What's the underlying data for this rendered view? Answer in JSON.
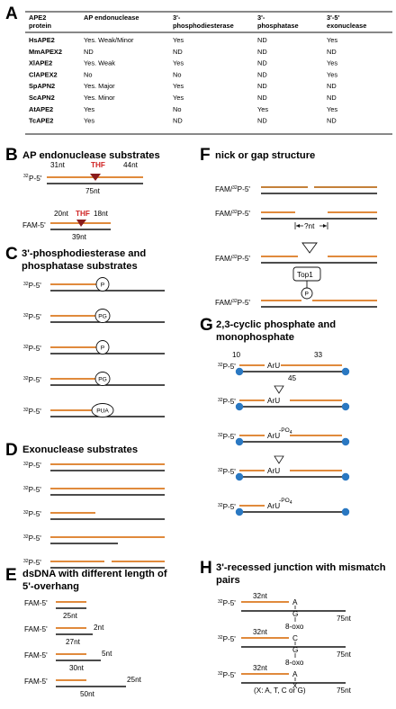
{
  "table": {
    "headers": [
      "APE2 protein",
      "AP endonuclease",
      "3'- phosphodiesterase",
      "3'- phosphatase",
      "3'-5' exonuclease"
    ],
    "rows": [
      [
        "HsAPE2",
        "Yes. Weak/Minor",
        "Yes",
        "ND",
        "Yes"
      ],
      [
        "MmAPEX2",
        "ND",
        "ND",
        "ND",
        "ND"
      ],
      [
        "XlAPE2",
        "Yes. Weak",
        "Yes",
        "ND",
        "Yes"
      ],
      [
        "ClAPEX2",
        "No",
        "No",
        "ND",
        "Yes"
      ],
      [
        "SpAPN2",
        "Yes. Major",
        "Yes",
        "ND",
        "ND"
      ],
      [
        "ScAPN2",
        "Yes. Minor",
        "Yes",
        "ND",
        "ND"
      ],
      [
        "AtAPE2",
        "Yes",
        "No",
        "Yes",
        "Yes"
      ],
      [
        "TcAPE2",
        "Yes",
        "ND",
        "ND",
        "ND"
      ]
    ]
  },
  "sections": {
    "A": {
      "letter": "A"
    },
    "B": {
      "letter": "B",
      "title": "AP endonuclease substrates",
      "p32": "32",
      "p_5": "P-5'",
      "thf": "THF",
      "nt31": "31nt",
      "nt44": "44nt",
      "nt75": "75nt",
      "fam": "FAM-5'",
      "nt20": "20nt",
      "nt18": "18nt",
      "nt39": "39nt"
    },
    "C": {
      "letter": "C",
      "title1": "3'-phosphodiesterase and",
      "title2": "phosphatase substrates",
      "mods": [
        "P",
        "PG",
        "P",
        "PG",
        "PUA"
      ]
    },
    "D": {
      "letter": "D",
      "title": "Exonuclease substrates"
    },
    "E": {
      "letter": "E",
      "title1": "dsDNA with different length of",
      "title2": "5'-overhang",
      "fam": "FAM-5'",
      "rows": [
        {
          "over": "",
          "bottom": "25nt"
        },
        {
          "over": "2nt",
          "bottom": "27nt"
        },
        {
          "over": "5nt",
          "bottom": "30nt"
        },
        {
          "over": "25nt",
          "bottom": "50nt"
        }
      ]
    },
    "F": {
      "letter": "F",
      "title": "nick or gap structure",
      "famp": "FAM/",
      "gap": "?nt",
      "top1": "Top1",
      "p": "P"
    },
    "G": {
      "letter": "G",
      "title1": "2,3-cyclic phosphate and",
      "title2": "monophosphate",
      "n10": "10",
      "n33": "33",
      "n45": "45",
      "aru": "ArU",
      "po4": "-PO",
      "sub4": "4"
    },
    "H": {
      "letter": "H",
      "title1": "3'-recessed junction with mismatch",
      "title2": "pairs",
      "nt32": "32nt",
      "nt75": "75nt",
      "oxo": "8-oxo",
      "pairs": [
        [
          "A",
          "G"
        ],
        [
          "C",
          "G"
        ],
        [
          "A",
          "X"
        ]
      ],
      "note": "(X: A, T, C or G)"
    }
  }
}
